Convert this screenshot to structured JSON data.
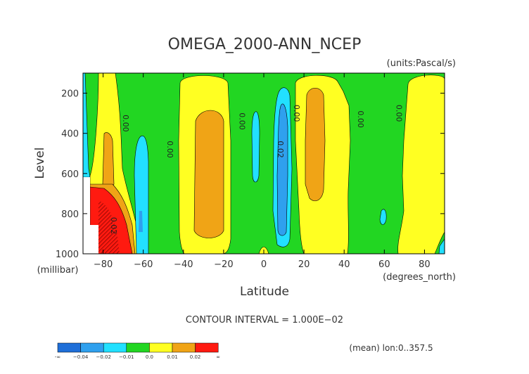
{
  "chart_data": {
    "type": "heatmap",
    "title": "OMEGA_2000-ANN_NCEP",
    "units_note": "(units:Pascal/s)",
    "xlabel": "Latitude",
    "x_units": "(degrees_north)",
    "ylabel": "Level",
    "y_units": "(millibar)",
    "xlim": [
      -90,
      90
    ],
    "ylim": [
      1000,
      100
    ],
    "x_ticks": [
      -80,
      -60,
      -40,
      -20,
      0,
      20,
      40,
      60,
      80
    ],
    "x_tick_labels": [
      "−80",
      "−60",
      "−40",
      "−20",
      "0",
      "20",
      "40",
      "60",
      "80"
    ],
    "y_ticks": [
      200,
      400,
      600,
      800,
      1000
    ],
    "y_tick_labels": [
      "200",
      "400",
      "600",
      "800",
      "1000"
    ],
    "contour_interval_label": "CONTOUR INTERVAL = 1.000E−02",
    "footer_note": "(mean) lon:0..357.5",
    "contour_labels": [
      {
        "text": "0.00",
        "x": -70,
        "y": 350
      },
      {
        "text": "0.00",
        "x": -48,
        "y": 480
      },
      {
        "text": "0.00",
        "x": -12,
        "y": 340
      },
      {
        "text": "0.00",
        "x": 15,
        "y": 300
      },
      {
        "text": "0.00",
        "x": 47,
        "y": 330
      },
      {
        "text": "0.00",
        "x": 66,
        "y": 300
      },
      {
        "text": "0.02",
        "x": 7,
        "y": 480
      },
      {
        "text": "0.02",
        "x": -76,
        "y": 860
      }
    ],
    "colorbar": {
      "colors": [
        "#1f6fd8",
        "#2fa0ee",
        "#22e0ff",
        "#22d622",
        "#ffff22",
        "#f0a416",
        "#ff1a10"
      ],
      "labels": [
        "-∞",
        "−0.04",
        "−0.02",
        "−0.01",
        "0.0",
        "0.01",
        "0.02",
        "∞"
      ]
    }
  }
}
